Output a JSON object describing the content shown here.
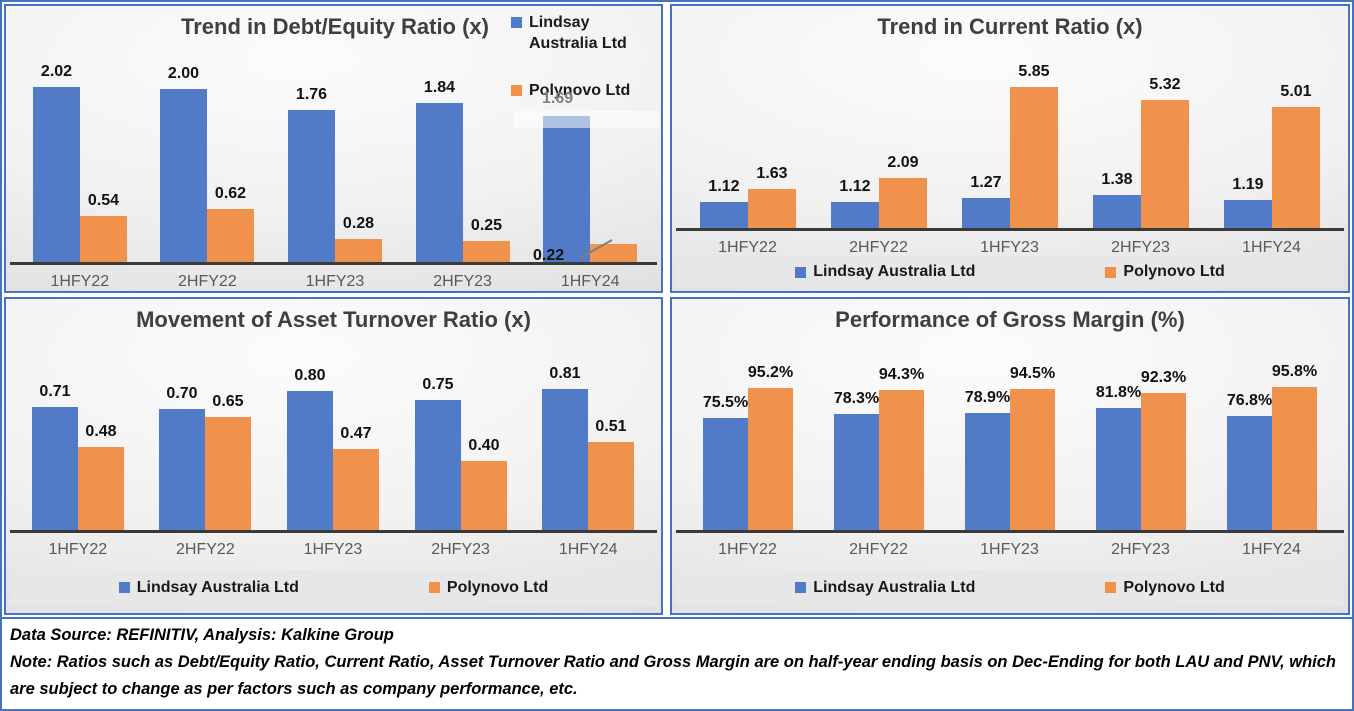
{
  "footer": {
    "line1": "Data Source: REFINITIV, Analysis: Kalkine Group",
    "line2": "Note: Ratios such as Debt/Equity Ratio, Current Ratio, Asset Turnover Ratio and Gross Margin are on half-year ending basis on Dec-Ending for both LAU and PNV, which are subject to change as per factors such as company performance, etc."
  },
  "colors": {
    "lindsay_blue": "#517bc6",
    "polynovo_orange": "#f0914c",
    "title_gray": "#3f3f3f",
    "axis_label_gray": "#595959",
    "axis_line": "#3a3a3a",
    "panel_border": "#4673be",
    "legend_strip_bg": "#e7e7e7",
    "moved_label_gray": "#7f7f7f"
  },
  "chart_data": [
    {
      "type": "bar",
      "title": "Trend in Debt/Equity Ratio (x)",
      "categories": [
        "1HFY22",
        "2HFY22",
        "1HFY23",
        "2HFY23",
        "1HFY24"
      ],
      "series": [
        {
          "name": "Lindsay Australia Ltd",
          "values": [
            2.02,
            2.0,
            1.76,
            1.84,
            1.69
          ]
        },
        {
          "name": "Polynovo Ltd",
          "values": [
            0.54,
            0.62,
            0.28,
            0.25,
            0.22
          ]
        }
      ],
      "ylim": [
        0,
        2.2
      ],
      "grid": false,
      "legend_position": "right",
      "label_format": "fixed2",
      "annotations": {
        "moved_labels": [
          {
            "series": 0,
            "index": 4,
            "class": "annot-moved-blue"
          },
          {
            "series": 1,
            "index": 4,
            "class": "annot-moved-orange"
          }
        ],
        "leader_line": true,
        "highlight_box": true
      }
    },
    {
      "type": "bar",
      "title": "Trend in Current Ratio (x)",
      "categories": [
        "1HFY22",
        "2HFY22",
        "1HFY23",
        "2HFY23",
        "1HFY24"
      ],
      "series": [
        {
          "name": "Lindsay Australia Ltd",
          "values": [
            1.12,
            1.12,
            1.27,
            1.38,
            1.19
          ]
        },
        {
          "name": "Polynovo Ltd",
          "values": [
            1.63,
            2.09,
            5.85,
            5.32,
            5.01
          ]
        }
      ],
      "ylim": [
        0,
        6.5
      ],
      "grid": false,
      "legend_position": "bottom-strip",
      "label_format": "fixed2"
    },
    {
      "type": "bar",
      "title": "Movement of Asset Turnover Ratio (x)",
      "categories": [
        "1HFY22",
        "2HFY22",
        "1HFY23",
        "2HFY23",
        "1HFY24"
      ],
      "series": [
        {
          "name": "Lindsay Australia Ltd",
          "values": [
            0.71,
            0.7,
            0.8,
            0.75,
            0.81
          ]
        },
        {
          "name": "Polynovo Ltd",
          "values": [
            0.48,
            0.65,
            0.47,
            0.4,
            0.51
          ]
        }
      ],
      "ylim": [
        0,
        0.9
      ],
      "grid": false,
      "legend_position": "bottom-strip",
      "label_format": "fixed2"
    },
    {
      "type": "bar",
      "title": "Performance of Gross Margin (%)",
      "categories": [
        "1HFY22",
        "2HFY22",
        "1HFY23",
        "2HFY23",
        "1HFY24"
      ],
      "series": [
        {
          "name": "Lindsay Australia Ltd",
          "values": [
            75.5,
            78.3,
            78.9,
            81.8,
            76.8
          ]
        },
        {
          "name": "Polynovo Ltd",
          "values": [
            95.2,
            94.3,
            94.5,
            92.3,
            95.8
          ]
        }
      ],
      "ylim": [
        0,
        100
      ],
      "grid": false,
      "legend_position": "bottom-strip",
      "label_format": "percent1"
    }
  ]
}
